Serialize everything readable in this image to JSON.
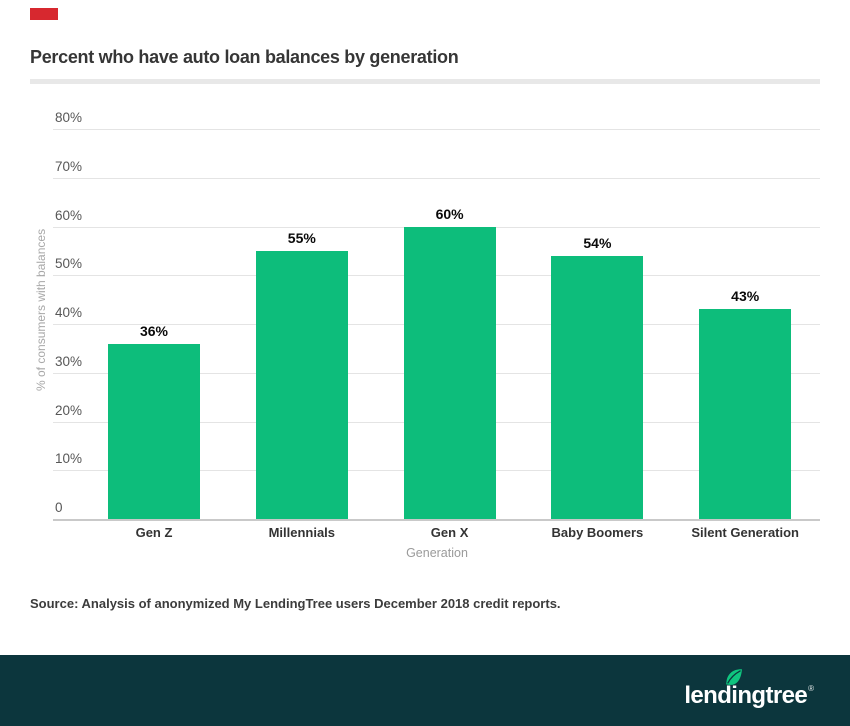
{
  "brand": {
    "accent_bar_color": "#d7282f",
    "footer_background": "#0c363d",
    "logo_text": "lendingtree",
    "registered_mark": "®",
    "leaf_color": "#0fc57f",
    "logo_text_color": "#ffffff"
  },
  "header": {
    "title": "Percent who have auto loan balances by generation",
    "divider_color": "#e8e8e8"
  },
  "source_line": "Source: Analysis of anonymized My LendingTree users December 2018 credit reports.",
  "chart_data": {
    "type": "bar",
    "title": "Percent who have auto loan balances by generation",
    "categories": [
      "Gen Z",
      "Millennials",
      "Gen X",
      "Baby Boomers",
      "Silent Generation"
    ],
    "values": [
      36,
      55,
      60,
      54,
      43
    ],
    "value_labels": [
      "36%",
      "55%",
      "60%",
      "54%",
      "43%"
    ],
    "xlabel": "Generation",
    "ylabel": "% of consumers with balances",
    "ylim": [
      0,
      80
    ],
    "yticks": [
      80,
      70,
      60,
      50,
      40,
      30,
      20,
      10,
      0
    ],
    "ytick_labels": [
      "80%",
      "70%",
      "60%",
      "50%",
      "40%",
      "30%",
      "20%",
      "10%",
      "0"
    ],
    "bar_color": "#0dbd7b",
    "grid": true,
    "gridline_color": "#e4e4e4",
    "axis_line_color": "#c9c9c9",
    "legend": "none"
  }
}
